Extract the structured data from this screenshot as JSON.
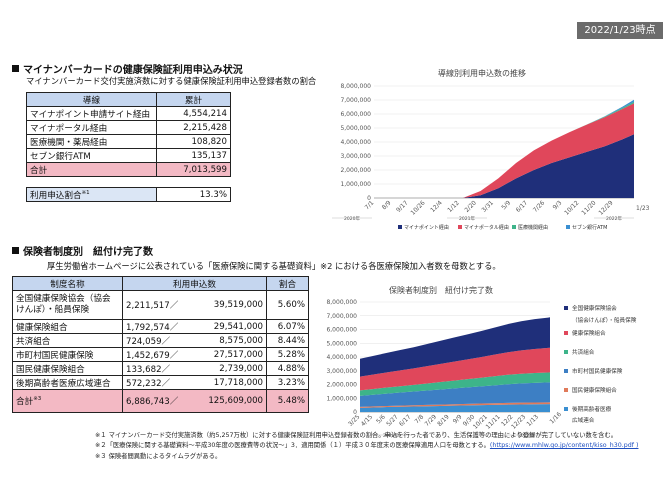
{
  "date_badge": "2022/1/23時点",
  "section1": {
    "title": "マイナンバーカードの健康保険証利用申込み状況",
    "subtitle": "マイナンバーカード交付実施済数に対する健康保険証利用申込登録者数の割合",
    "table": {
      "headers": [
        "導線",
        "累計"
      ],
      "rows": [
        {
          "label": "マイナポイント申請サイト経由",
          "value": "4,554,214"
        },
        {
          "label": "マイナポータル経由",
          "value": "2,215,428"
        },
        {
          "label": "医療機関・薬局経由",
          "value": "108,820"
        },
        {
          "label": "セブン銀行ATM",
          "value": "135,137"
        }
      ],
      "total_label": "合計",
      "total_value": "7,013,599"
    },
    "ratio": {
      "label": "利用申込割合",
      "note": "※1",
      "value": "13.3%"
    }
  },
  "section2": {
    "title": "保険者制度別　紐付け完了数",
    "subtitle": "厚生労働省ホームページに公表されている「医療保険に関する基礎資料」※2 における各医療保険加入者数を母数とする。",
    "table": {
      "headers": [
        "制度名称",
        "利用申込数",
        "割合"
      ],
      "rows": [
        {
          "name": "全国健康保険協会（協会けんぽ）・船員保険",
          "count": "2,211,517／",
          "base": "39,519,000",
          "pct": "5.60%"
        },
        {
          "name": "健康保険組合",
          "count": "1,792,574／",
          "base": "29,541,000",
          "pct": "6.07%"
        },
        {
          "name": "共済組合",
          "count": "724,059／",
          "base": "8,575,000",
          "pct": "8.44%"
        },
        {
          "name": "市町村国民健康保険",
          "count": "1,452,679／",
          "base": "27,517,000",
          "pct": "5.28%"
        },
        {
          "name": "国民健康保険組合",
          "count": "133,682／",
          "base": "2,739,000",
          "pct": "4.88%"
        },
        {
          "name": "後期高齢者医療広域連合",
          "count": "572,232／",
          "base": "17,718,000",
          "pct": "3.23%"
        }
      ],
      "total_label": "合計",
      "total_note": "※3",
      "total_count": "6,886,743／",
      "total_base": "125,609,000",
      "total_pct": "5.48%"
    }
  },
  "chart_data": [
    {
      "type": "area",
      "title": "導線別利用申込数の推移",
      "stacked": true,
      "ylim": [
        0,
        8000000
      ],
      "y_ticks": [
        "8,000,000",
        "7,000,000",
        "6,000,000",
        "5,000,000",
        "4,000,000",
        "3,000,000",
        "2,000,000",
        "1,000,000",
        "0"
      ],
      "x_ticks": [
        "7/1",
        "8/9",
        "9/17",
        "10/26",
        "12/4",
        "1/12",
        "2/20",
        "3/31",
        "5/9",
        "6/17",
        "7/26",
        "9/3",
        "10/12",
        "11/20",
        "12/29"
      ],
      "last_tick": "1/23",
      "year_labels": [
        "2020年",
        "2021年",
        "2022年"
      ],
      "x": [
        "2020-07-01",
        "2020-08-09",
        "2020-09-17",
        "2020-10-26",
        "2020-12-04",
        "2021-01-12",
        "2021-02-20",
        "2021-03-31",
        "2021-05-09",
        "2021-06-17",
        "2021-07-26",
        "2021-09-03",
        "2021-10-12",
        "2021-11-20",
        "2021-12-29",
        "2022-01-23"
      ],
      "series": [
        {
          "name": "マイナポイント経由",
          "color": "#1f2f7a",
          "values": [
            0,
            0,
            0,
            0,
            0,
            0,
            200000,
            700000,
            1400000,
            2000000,
            2500000,
            2900000,
            3300000,
            3700000,
            4200000,
            4554214
          ]
        },
        {
          "name": "マイナポータル経由",
          "color": "#e0475b",
          "values": [
            0,
            0,
            0,
            0,
            0,
            0,
            300000,
            700000,
            1100000,
            1400000,
            1600000,
            1800000,
            1950000,
            2080000,
            2170000,
            2215428
          ]
        },
        {
          "name": "医療機関経由",
          "color": "#3db48a",
          "values": [
            0,
            0,
            0,
            0,
            0,
            0,
            0,
            0,
            0,
            0,
            0,
            0,
            10000,
            40000,
            80000,
            108820
          ]
        },
        {
          "name": "セブン銀行ATM",
          "color": "#3a8fd1",
          "values": [
            0,
            0,
            0,
            0,
            0,
            0,
            0,
            0,
            0,
            0,
            0,
            0,
            0,
            20000,
            80000,
            135137
          ]
        }
      ]
    },
    {
      "type": "area",
      "title": "保険者制度別　紐付け完了数",
      "stacked": true,
      "ylim": [
        0,
        8000000
      ],
      "y_ticks": [
        "8,000,000",
        "7,000,000",
        "6,000,000",
        "5,000,000",
        "4,000,000",
        "3,000,000",
        "2,000,000",
        "1,000,000",
        "0"
      ],
      "x_ticks": [
        "3/25",
        "4/15",
        "5/6",
        "5/27",
        "6/17",
        "7/8",
        "7/29",
        "8/19",
        "9/9",
        "9/30",
        "10/21",
        "11/11",
        "12/2",
        "12/23",
        "1/13"
      ],
      "last_tick": "1/16",
      "year_labels": [
        "2021年",
        "2022年"
      ],
      "x": [
        "2021-03-25",
        "2021-04-15",
        "2021-05-06",
        "2021-05-27",
        "2021-06-17",
        "2021-07-08",
        "2021-07-29",
        "2021-08-19",
        "2021-09-09",
        "2021-09-30",
        "2021-10-21",
        "2021-11-11",
        "2021-12-02",
        "2021-12-23",
        "2022-01-13",
        "2022-01-16"
      ],
      "series": [
        {
          "name": "後期高齢者医療広域連合",
          "color": "#3a8fd1",
          "values": [
            300000,
            330000,
            360000,
            380000,
            400000,
            420000,
            440000,
            460000,
            480000,
            500000,
            520000,
            540000,
            550000,
            560000,
            570000,
            572232
          ]
        },
        {
          "name": "国民健康保険組合",
          "color": "#e07a5a",
          "values": [
            70000,
            75000,
            80000,
            85000,
            90000,
            95000,
            100000,
            105000,
            110000,
            115000,
            120000,
            125000,
            128000,
            130000,
            133000,
            133682
          ]
        },
        {
          "name": "市町村国民健康保険",
          "color": "#3d7fc4",
          "values": [
            800000,
            850000,
            900000,
            950000,
            1000000,
            1050000,
            1100000,
            1150000,
            1200000,
            1250000,
            1300000,
            1350000,
            1400000,
            1430000,
            1450000,
            1452679
          ]
        },
        {
          "name": "共済組合",
          "color": "#3db48a",
          "values": [
            400000,
            420000,
            440000,
            460000,
            480000,
            510000,
            540000,
            570000,
            600000,
            630000,
            660000,
            690000,
            705000,
            715000,
            722000,
            724059
          ]
        },
        {
          "name": "健康保険組合",
          "color": "#e0475b",
          "values": [
            1000000,
            1050000,
            1100000,
            1150000,
            1200000,
            1260000,
            1320000,
            1380000,
            1440000,
            1500000,
            1570000,
            1640000,
            1700000,
            1750000,
            1785000,
            1792574
          ]
        },
        {
          "name": "全国健康保険協会（協会けんぽ）・船員保険",
          "color": "#1f2f7a",
          "values": [
            1300000,
            1360000,
            1420000,
            1480000,
            1540000,
            1610000,
            1680000,
            1750000,
            1820000,
            1890000,
            1970000,
            2050000,
            2120000,
            2170000,
            2205000,
            2211517
          ]
        }
      ],
      "legend": [
        "全国健康保険協会",
        "（協会けんぽ）・船員保険",
        "健康保険組合",
        "共済組合",
        "市町村国民健康保険",
        "国民健康保険組合",
        "後期高齢者医療",
        "広域連合"
      ]
    }
  ],
  "footnotes": {
    "n1": "※１ マイナンバーカード交付実施済数（約5,257万枚）に対する健康保険証利用申込登録者数の割合。申込を行った者であり、生活保護等の理由により登録が完了していない数を含む。",
    "n2_text": "※２「医療保険に関する基礎資料～平成30年度の医療費等の状況～」3．適用関係（１）平成３０年度末の医療保障適用人口を母数とする。",
    "n2_link": "(https://www.mhlw.go.jp/content/kiso_h30.pdf )",
    "n3": "※３ 保険者間異動によるタイムラグがある。"
  }
}
